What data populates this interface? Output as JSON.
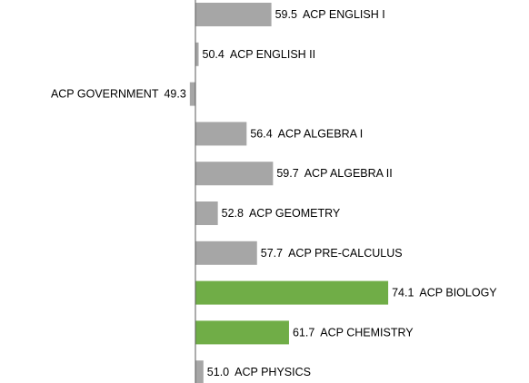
{
  "chart_data": {
    "type": "bar",
    "orientation": "horizontal",
    "categories": [
      "ACP ENGLISH I",
      "ACP ENGLISH II",
      "ACP GOVERNMENT",
      "ACP ALGEBRA I",
      "ACP ALGEBRA II",
      "ACP GEOMETRY",
      "ACP PRE-CALCULUS",
      "ACP BIOLOGY",
      "ACP CHEMISTRY",
      "ACP PHYSICS"
    ],
    "values": [
      59.5,
      50.4,
      49.3,
      56.4,
      59.7,
      52.8,
      57.7,
      74.1,
      61.7,
      51.0
    ],
    "value_labels": [
      "59.5",
      "50.4",
      "49.3",
      "56.4",
      "59.7",
      "52.8",
      "57.7",
      "74.1",
      "61.7",
      "51.0"
    ],
    "colors": [
      "#a6a6a6",
      "#a6a6a6",
      "#a6a6a6",
      "#a6a6a6",
      "#a6a6a6",
      "#a6a6a6",
      "#a6a6a6",
      "#70ad47",
      "#70ad47",
      "#a6a6a6"
    ],
    "baseline": 50,
    "xlim": [
      40,
      80
    ]
  }
}
